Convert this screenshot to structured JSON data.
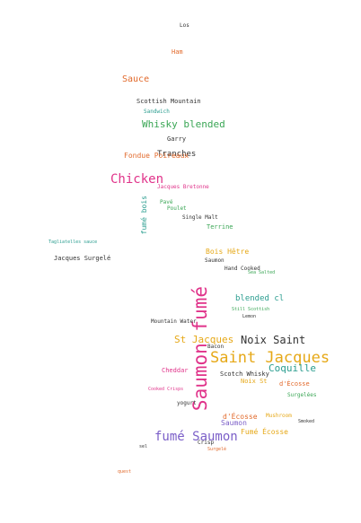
{
  "word_cloud": {
    "words": [
      {
        "text": "Los",
        "color": "#333333"
      },
      {
        "text": "Ham",
        "color": "#e26a2c"
      },
      {
        "text": "Sauce",
        "color": "#e26a2c"
      },
      {
        "text": "Scottish Mountain",
        "color": "#333333"
      },
      {
        "text": "Sandwich",
        "color": "#2a9d8f"
      },
      {
        "text": "Whisky blended",
        "color": "#3aa655"
      },
      {
        "text": "Garry",
        "color": "#333333"
      },
      {
        "text": "Tranches",
        "color": "#333333"
      },
      {
        "text": "Fondue Poireaux",
        "color": "#e26a2c"
      },
      {
        "text": "Chicken",
        "color": "#e0338a"
      },
      {
        "text": "Jacques Bretonne",
        "color": "#e0338a"
      },
      {
        "text": "fumé bois",
        "color": "#2a9d8f"
      },
      {
        "text": "Pavé",
        "color": "#3aa655"
      },
      {
        "text": "Poulet",
        "color": "#3aa655"
      },
      {
        "text": "Single Malt",
        "color": "#333333"
      },
      {
        "text": "Terrine",
        "color": "#3aa655"
      },
      {
        "text": "Tagliatelles sauce",
        "color": "#2a9d8f"
      },
      {
        "text": "Jacques Surgelé",
        "color": "#333333"
      },
      {
        "text": "Bois Hêtre",
        "color": "#e6a817"
      },
      {
        "text": "Saumon",
        "color": "#333333"
      },
      {
        "text": "Hand Cooked",
        "color": "#333333"
      },
      {
        "text": "Sea Salted",
        "color": "#3aa655"
      },
      {
        "text": "Saumon fumé",
        "color": "#e0338a"
      },
      {
        "text": "blended cl",
        "color": "#2a9d8f"
      },
      {
        "text": "Mountain Water",
        "color": "#333333"
      },
      {
        "text": "St Jacques",
        "color": "#e6a817"
      },
      {
        "text": "Noix Saint",
        "color": "#333333"
      },
      {
        "text": "Saint Jacques",
        "color": "#e6a817"
      },
      {
        "text": "Bacon",
        "color": "#333333"
      },
      {
        "text": "Coquille",
        "color": "#2a9d8f"
      },
      {
        "text": "Cheddar",
        "color": "#e0338a"
      },
      {
        "text": "Scotch Whisky",
        "color": "#333333"
      },
      {
        "text": "Noix St",
        "color": "#e6a817"
      },
      {
        "text": "d'Écosse",
        "color": "#e26a2c"
      },
      {
        "text": "Surgelées",
        "color": "#3aa655"
      },
      {
        "text": "Cooked Crisps",
        "color": "#e0338a"
      },
      {
        "text": "yogurt",
        "color": "#333333"
      },
      {
        "text": "d'Écosse",
        "color": "#e26a2c"
      },
      {
        "text": "Saumon",
        "color": "#7b5fc8"
      },
      {
        "text": "Mushroom",
        "color": "#e6a817"
      },
      {
        "text": "Fumé Écosse",
        "color": "#e6a817"
      },
      {
        "text": "fumé Saumon",
        "color": "#7b5fc8"
      },
      {
        "text": "Crisp",
        "color": "#333333"
      },
      {
        "text": "Surgelé",
        "color": "#e26a2c"
      },
      {
        "text": "quest",
        "color": "#e26a2c"
      },
      {
        "text": "sel",
        "color": "#333333"
      },
      {
        "text": "Smoked",
        "color": "#333333"
      },
      {
        "text": "Still Scottish",
        "color": "#3aa655"
      },
      {
        "text": "Lemon",
        "color": "#333333"
      }
    ]
  }
}
